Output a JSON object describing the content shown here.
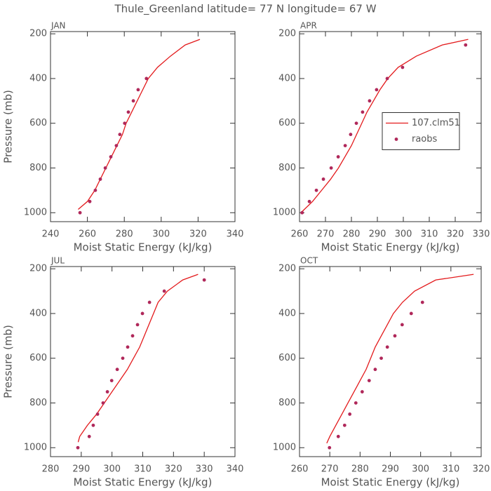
{
  "title": "Thule_Greenland  latitude= 77 N longitude= 67 W",
  "chart_data": [
    {
      "type": "line",
      "title": "JAN",
      "xlabel": "Moist Static Energy (kJ/kg)",
      "ylabel": "Pressure (mb)",
      "xlim": [
        240,
        340
      ],
      "xticks": [
        240,
        260,
        280,
        300,
        320,
        340
      ],
      "ylim": [
        1040,
        190
      ],
      "yticks": [
        200,
        400,
        600,
        800,
        1000
      ],
      "series": [
        {
          "name": "107.clm51",
          "kind": "line",
          "color": "#e31a1c",
          "x": [
            255,
            260,
            264,
            267,
            270,
            273,
            276,
            279,
            281,
            284,
            287,
            290,
            293,
            298,
            305,
            313,
            321
          ],
          "values": [
            985,
            950,
            900,
            850,
            800,
            750,
            700,
            650,
            600,
            550,
            500,
            450,
            400,
            350,
            300,
            250,
            225
          ]
        },
        {
          "name": "raobs",
          "kind": "scatter",
          "color": "#b0285a",
          "x": [
            256,
            261.3,
            264.3,
            267,
            269.7,
            272.7,
            275.7,
            277.6,
            280.2,
            282.2,
            284.9,
            287.5,
            292
          ],
          "values": [
            1000,
            950,
            900,
            850,
            800,
            750,
            700,
            650,
            600,
            550,
            500,
            450,
            400
          ]
        }
      ]
    },
    {
      "type": "line",
      "title": "APR",
      "xlabel": "Moist Static Energy (kJ/kg)",
      "xlim": [
        260,
        330
      ],
      "xticks": [
        260,
        270,
        280,
        290,
        300,
        310,
        320,
        330
      ],
      "ylim": [
        1040,
        190
      ],
      "yticks": [
        200,
        400,
        600,
        800,
        1000
      ],
      "legend": "center right",
      "series": [
        {
          "name": "107.clm51",
          "kind": "line",
          "color": "#e31a1c",
          "x": [
            261,
            265,
            268.5,
            272,
            275,
            277.5,
            280,
            282,
            284,
            286,
            288.5,
            291,
            294,
            298,
            305,
            315,
            325
          ],
          "values": [
            995,
            950,
            900,
            850,
            800,
            750,
            700,
            650,
            600,
            550,
            500,
            450,
            400,
            350,
            300,
            250,
            225
          ]
        },
        {
          "name": "raobs",
          "kind": "scatter",
          "color": "#b0285a",
          "x": [
            261,
            263.8,
            266.5,
            269.2,
            272.2,
            274.9,
            277.6,
            279.7,
            281.9,
            284.3,
            287,
            289.7,
            293.8,
            299.7,
            324
          ],
          "values": [
            1000,
            950,
            900,
            850,
            800,
            750,
            700,
            650,
            600,
            550,
            500,
            450,
            400,
            350,
            250
          ]
        }
      ]
    },
    {
      "type": "line",
      "title": "JUL",
      "xlabel": "Moist Static Energy (kJ/kg)",
      "ylabel": "Pressure (mb)",
      "xlim": [
        280,
        340
      ],
      "xticks": [
        280,
        290,
        300,
        310,
        320,
        330,
        340
      ],
      "ylim": [
        1040,
        190
      ],
      "yticks": [
        200,
        400,
        600,
        800,
        1000
      ],
      "series": [
        {
          "name": "107.clm51",
          "kind": "line",
          "color": "#e31a1c",
          "x": [
            289,
            289.5,
            292,
            295,
            297.5,
            300,
            302.5,
            305,
            307,
            309,
            310.5,
            312,
            313.5,
            315,
            318,
            323,
            328
          ],
          "values": [
            975,
            950,
            900,
            850,
            800,
            750,
            700,
            650,
            600,
            550,
            500,
            450,
            400,
            350,
            300,
            250,
            225
          ]
        },
        {
          "name": "raobs",
          "kind": "scatter",
          "color": "#b0285a",
          "x": [
            288.9,
            292.6,
            293.9,
            295.3,
            297.1,
            298.5,
            299.9,
            301.7,
            303.5,
            305.1,
            306.7,
            308.3,
            309.9,
            312.2,
            317,
            330
          ],
          "values": [
            1000,
            950,
            900,
            850,
            800,
            750,
            700,
            650,
            600,
            550,
            500,
            450,
            400,
            350,
            300,
            250
          ]
        }
      ]
    },
    {
      "type": "line",
      "title": "OCT",
      "xlabel": "Moist Static Energy (kJ/kg)",
      "xlim": [
        260,
        320
      ],
      "xticks": [
        260,
        270,
        280,
        290,
        300,
        310,
        320
      ],
      "ylim": [
        1040,
        190
      ],
      "yticks": [
        200,
        400,
        600,
        800,
        1000
      ],
      "series": [
        {
          "name": "107.clm51",
          "kind": "line",
          "color": "#e31a1c",
          "x": [
            269,
            270,
            272,
            274,
            276,
            278,
            280,
            282,
            283.5,
            285,
            287,
            289,
            291,
            294,
            298,
            305,
            317.5
          ],
          "values": [
            980,
            950,
            900,
            850,
            800,
            750,
            700,
            650,
            600,
            550,
            500,
            450,
            400,
            350,
            300,
            250,
            225
          ]
        },
        {
          "name": "raobs",
          "kind": "scatter",
          "color": "#b0285a",
          "x": [
            269.9,
            272.8,
            274.9,
            276.6,
            278.6,
            280.7,
            283,
            285,
            287,
            289,
            291.5,
            293.9,
            296.9,
            300.6
          ],
          "values": [
            1000,
            950,
            900,
            850,
            800,
            750,
            700,
            650,
            600,
            550,
            500,
            450,
            400,
            350
          ]
        }
      ]
    }
  ]
}
